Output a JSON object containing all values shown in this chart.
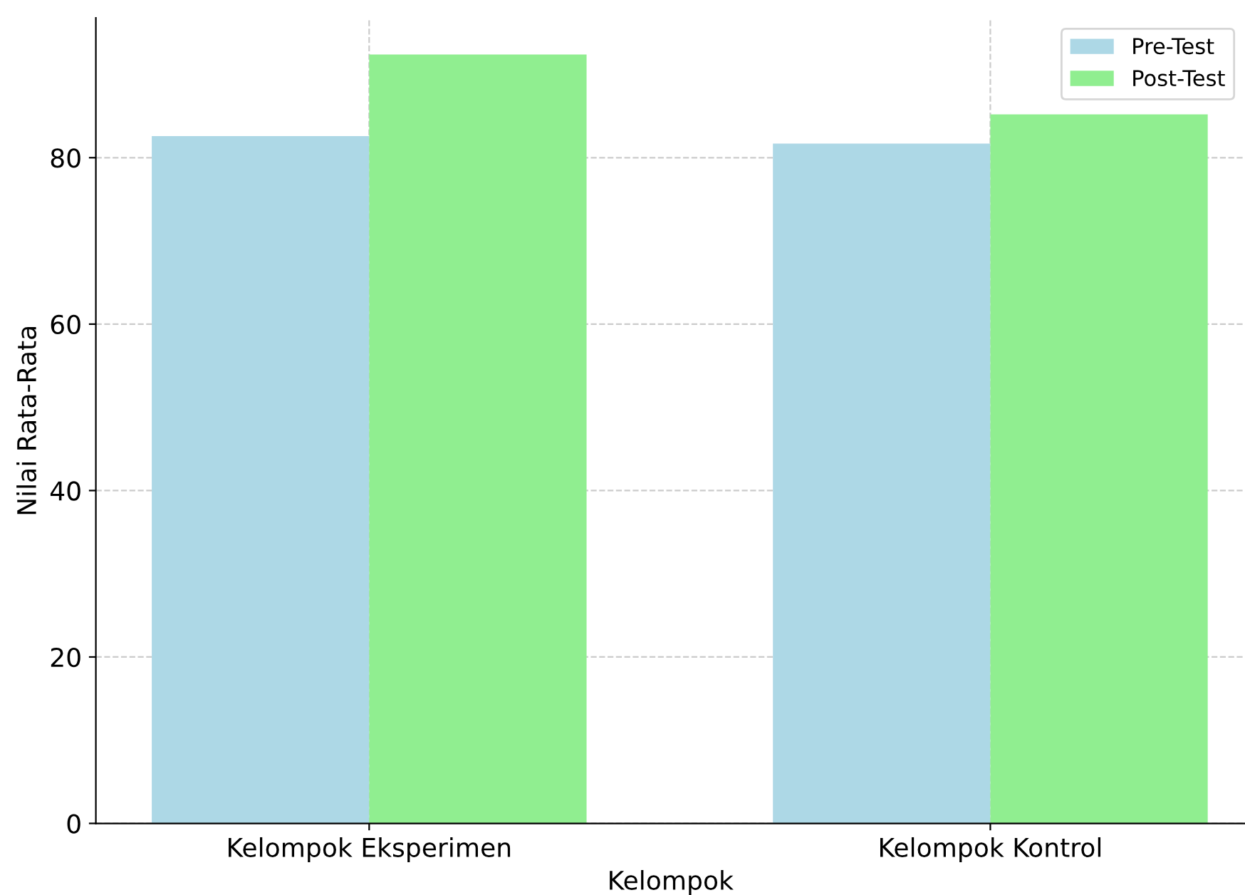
{
  "chart_data": {
    "type": "bar",
    "xlabel": "Kelompok",
    "ylabel": "Nilai Rata-Rata",
    "categories": [
      "Kelompok Eksperimen",
      "Kelompok Kontrol"
    ],
    "series": [
      {
        "name": "Pre-Test",
        "color": "#add8e6",
        "values": [
          82.6,
          81.7
        ]
      },
      {
        "name": "Post-Test",
        "color": "#90ee90",
        "values": [
          92.4,
          85.2
        ]
      }
    ],
    "ylim": [
      0,
      96.8
    ],
    "yticks": [
      0,
      20,
      40,
      60,
      80
    ],
    "grid": true,
    "legend": "top right"
  }
}
